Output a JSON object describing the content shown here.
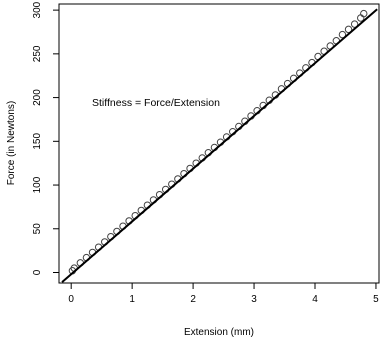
{
  "chart_data": {
    "type": "scatter",
    "xlabel": "Extension (mm)",
    "ylabel": "Force (in Newtons)",
    "xlim": [
      -0.2,
      5.05
    ],
    "ylim": [
      -12,
      307
    ],
    "xticks": [
      0,
      1,
      2,
      3,
      4,
      5
    ],
    "yticks": [
      0,
      50,
      100,
      150,
      200,
      250,
      300
    ],
    "annotation": "Stiffness = Force/Extension",
    "grid": false,
    "points": {
      "x": [
        0.02,
        0.05,
        0.15,
        0.25,
        0.35,
        0.45,
        0.55,
        0.65,
        0.75,
        0.85,
        0.95,
        1.05,
        1.15,
        1.25,
        1.35,
        1.45,
        1.55,
        1.65,
        1.75,
        1.85,
        1.95,
        2.05,
        2.15,
        2.25,
        2.35,
        2.45,
        2.55,
        2.65,
        2.75,
        2.85,
        2.95,
        3.05,
        3.15,
        3.25,
        3.35,
        3.45,
        3.55,
        3.65,
        3.75,
        3.85,
        3.95,
        4.05,
        4.15,
        4.25,
        4.35,
        4.45,
        4.55,
        4.65,
        4.75,
        4.8
      ],
      "y": [
        2,
        5,
        11,
        17,
        23,
        29,
        35,
        41,
        47,
        53,
        59,
        65,
        71,
        77,
        83,
        89,
        95,
        101,
        107,
        113,
        119,
        125,
        131,
        137,
        143,
        149,
        155,
        161,
        167,
        173,
        179,
        185,
        191,
        197,
        203,
        210,
        216,
        222,
        228,
        234,
        240,
        247,
        253,
        259,
        265,
        272,
        278,
        284,
        291,
        296
      ]
    },
    "fit_line": {
      "x": [
        -0.15,
        5.02
      ],
      "y": [
        -11,
        301
      ]
    }
  }
}
